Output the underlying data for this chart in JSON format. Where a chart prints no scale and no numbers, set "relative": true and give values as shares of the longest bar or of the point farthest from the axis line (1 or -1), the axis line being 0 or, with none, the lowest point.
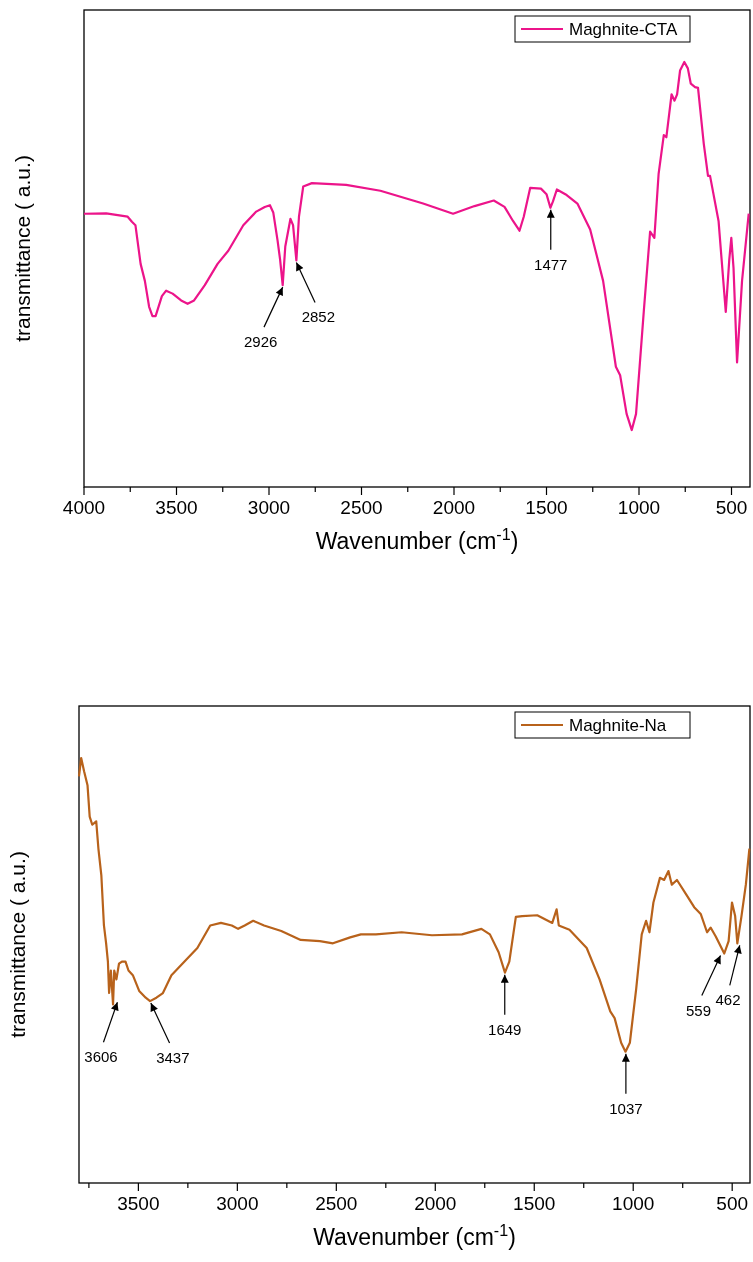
{
  "chart_data": [
    {
      "type": "line",
      "xlabel": "Wavenumber (cm$^{-1}$)",
      "ylabel": "transmittance ( a.u.)",
      "relative": true,
      "tick_labels": "x",
      "legend": "top right",
      "xlim": [
        4000,
        400
      ],
      "xticks": [
        4000,
        {
          "value": 3750,
          "label": null
        },
        3500,
        {
          "value": 3250,
          "label": null
        },
        3000,
        {
          "value": 2750,
          "label": null
        },
        2500,
        {
          "value": 2250,
          "label": null
        },
        2000,
        {
          "value": 1750,
          "label": null
        },
        1500,
        {
          "value": 1250,
          "label": null
        },
        1000,
        {
          "value": 750,
          "label": null
        },
        500
      ],
      "x": [
        4000,
        3880,
        3764,
        3741,
        3722,
        3694,
        3671,
        3648,
        3630,
        3613,
        3579,
        3556,
        3521,
        3475,
        3440,
        3405,
        3347,
        3278,
        3220,
        3139,
        3069,
        3023,
        2995,
        2977,
        2954,
        2940,
        2926,
        2912,
        2884,
        2870,
        2852,
        2838,
        2815,
        2768,
        2583,
        2398,
        2167,
        2005,
        1889,
        1785,
        1727,
        1681,
        1646,
        1623,
        1588,
        1530,
        1500,
        1479,
        1465,
        1444,
        1391,
        1333,
        1264,
        1194,
        1125,
        1102,
        1067,
        1039,
        1016,
        974,
        940,
        917,
        894,
        866,
        852,
        824,
        808,
        794,
        778,
        755,
        736,
        720,
        697,
        681,
        650,
        627,
        616,
        570,
        531,
        512,
        501,
        489,
        470,
        443,
        407
      ],
      "series": [
        {
          "name": "Maghnite-CTA",
          "color": "#ec148a",
          "values": [
            0.643,
            0.644,
            0.636,
            0.624,
            0.616,
            0.525,
            0.485,
            0.424,
            0.402,
            0.402,
            0.449,
            0.462,
            0.455,
            0.439,
            0.431,
            0.439,
            0.475,
            0.525,
            0.556,
            0.616,
            0.648,
            0.659,
            0.663,
            0.646,
            0.581,
            0.535,
            0.475,
            0.566,
            0.631,
            0.616,
            0.533,
            0.636,
            0.707,
            0.715,
            0.711,
            0.697,
            0.667,
            0.643,
            0.661,
            0.674,
            0.659,
            0.626,
            0.603,
            0.636,
            0.704,
            0.702,
            0.689,
            0.657,
            0.672,
            0.7,
            0.687,
            0.667,
            0.606,
            0.485,
            0.283,
            0.263,
            0.172,
            0.134,
            0.172,
            0.414,
            0.601,
            0.586,
            0.737,
            0.828,
            0.823,
            0.924,
            0.909,
            0.924,
            0.98,
            1,
            0.985,
            0.949,
            0.941,
            0.939,
            0.808,
            0.732,
            0.732,
            0.626,
            0.412,
            0.535,
            0.586,
            0.515,
            0.293,
            0.485,
            0.643
          ]
        }
      ],
      "annotations": [
        {
          "text": "2926",
          "x": 2926,
          "y": 0.475
        },
        {
          "text": "2852",
          "x": 2852,
          "y": 0.533
        },
        {
          "text": "1477",
          "x": 1477,
          "y": 0.657
        }
      ]
    },
    {
      "type": "line",
      "xlabel": "Wavenumber (cm$^{-1}$)",
      "ylabel": "transmittance ( a.u.)",
      "relative": true,
      "tick_labels": "x",
      "legend": "top right",
      "xlim": [
        3800,
        410
      ],
      "xticks": [
        {
          "value": 3750,
          "label": null
        },
        3500,
        {
          "value": 3250,
          "label": null
        },
        3000,
        {
          "value": 2750,
          "label": null
        },
        2500,
        {
          "value": 2250,
          "label": null
        },
        2000,
        {
          "value": 1750,
          "label": null
        },
        1500,
        {
          "value": 1250,
          "label": null
        },
        1000,
        {
          "value": 750,
          "label": null
        },
        500
      ],
      "x": [
        3800,
        3789,
        3774,
        3757,
        3746,
        3733,
        3713,
        3702,
        3687,
        3674,
        3663,
        3654,
        3648,
        3639,
        3628,
        3622,
        3611,
        3598,
        3583,
        3565,
        3550,
        3528,
        3496,
        3463,
        3441,
        3409,
        3376,
        3333,
        3267,
        3202,
        3137,
        3083,
        3028,
        2996,
        2963,
        2920,
        2865,
        2778,
        2680,
        2583,
        2517,
        2430,
        2376,
        2300,
        2170,
        2017,
        1865,
        1767,
        1724,
        1680,
        1648,
        1626,
        1593,
        1561,
        1485,
        1409,
        1387,
        1376,
        1322,
        1235,
        1170,
        1116,
        1094,
        1061,
        1039,
        1017,
        985,
        957,
        935,
        918,
        898,
        865,
        844,
        822,
        805,
        779,
        735,
        692,
        659,
        627,
        609,
        583,
        540,
        518,
        501,
        485,
        474,
        453,
        431,
        413
      ],
      "series": [
        {
          "name": "Maghnite-Na",
          "color": "#b8621b",
          "values": [
            0.957,
            1,
            0.968,
            0.936,
            0.862,
            0.843,
            0.851,
            0.787,
            0.723,
            0.606,
            0.564,
            0.521,
            0.447,
            0.5,
            0.42,
            0.5,
            0.479,
            0.516,
            0.521,
            0.521,
            0.5,
            0.489,
            0.452,
            0.436,
            0.428,
            0.436,
            0.447,
            0.489,
            0.521,
            0.553,
            0.606,
            0.612,
            0.606,
            0.598,
            0.606,
            0.617,
            0.606,
            0.593,
            0.572,
            0.569,
            0.564,
            0.578,
            0.585,
            0.585,
            0.59,
            0.583,
            0.585,
            0.598,
            0.585,
            0.543,
            0.495,
            0.521,
            0.626,
            0.628,
            0.63,
            0.612,
            0.644,
            0.606,
            0.596,
            0.553,
            0.479,
            0.404,
            0.388,
            0.33,
            0.309,
            0.33,
            0.457,
            0.585,
            0.617,
            0.59,
            0.66,
            0.718,
            0.713,
            0.734,
            0.702,
            0.713,
            0.681,
            0.649,
            0.633,
            0.59,
            0.601,
            0.58,
            0.54,
            0.569,
            0.66,
            0.628,
            0.564,
            0.628,
            0.702,
            0.787
          ]
        }
      ],
      "annotations": [
        {
          "text": "3606",
          "x": 3606,
          "y": 0.43
        },
        {
          "text": "3437",
          "x": 3437,
          "y": 0.428
        },
        {
          "text": "1649",
          "x": 1649,
          "y": 0.495
        },
        {
          "text": "1037",
          "x": 1037,
          "y": 0.309
        },
        {
          "text": "559",
          "x": 559,
          "y": 0.54
        },
        {
          "text": "462",
          "x": 462,
          "y": 0.564
        }
      ]
    }
  ]
}
